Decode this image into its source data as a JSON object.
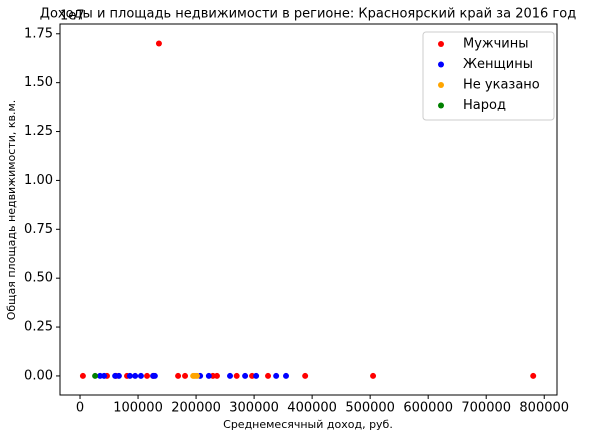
{
  "chart_data": {
    "type": "scatter",
    "title": "Доходы и площадь недвижимости в регионе: Красноярский край за 2016 год",
    "x_label": "Среднемесячный доход, руб.",
    "y_label": "Общая площадь недвижимости, кв.м.",
    "y_offset_label": "1e7",
    "xlim": [
      -34500,
      822000
    ],
    "ylim": [
      -0.0975,
      1.8
    ],
    "xticks": [
      0,
      100000,
      200000,
      300000,
      400000,
      500000,
      600000,
      700000,
      800000
    ],
    "yticks": [
      {
        "value": 0,
        "label": "0.00"
      },
      {
        "value": 0.25,
        "label": "0.25"
      },
      {
        "value": 0.5,
        "label": "0.50"
      },
      {
        "value": 0.75,
        "label": "0.75"
      },
      {
        "value": 1,
        "label": "1.00"
      },
      {
        "value": 1.25,
        "label": "1.25"
      },
      {
        "value": 1.5,
        "label": "1.50"
      },
      {
        "value": 1.75,
        "label": "1.75"
      }
    ],
    "legend": "upper right",
    "series": [
      {
        "name": "Мужчины",
        "color": "#ff0000",
        "x": [
          5000,
          46500,
          62000,
          81000,
          115500,
          126000,
          136000,
          169000,
          181000,
          229000,
          236000,
          270000,
          296500,
          324000,
          388000,
          505000,
          781000
        ],
        "values": [
          0,
          0,
          0,
          0,
          0,
          0,
          1.7,
          0,
          0,
          0,
          0,
          0,
          0,
          0,
          0,
          0,
          0
        ]
      },
      {
        "name": "Женщины",
        "color": "#0000ff",
        "x": [
          34500,
          41500,
          60500,
          67000,
          86000,
          95000,
          105000,
          126000,
          129000,
          207000,
          222000,
          258500,
          284500,
          303500,
          338000,
          355000
        ],
        "values": [
          0,
          0,
          0,
          0,
          0,
          0,
          0,
          0,
          0,
          0,
          0,
          0,
          0,
          0,
          0,
          0
        ]
      },
      {
        "name": "Не указано",
        "color": "#ffa500",
        "x": [
          195000,
          198000,
          201500
        ],
        "values": [
          0,
          0,
          0
        ]
      },
      {
        "name": "Народ",
        "color": "#008000",
        "x": [
          26000
        ],
        "values": [
          0
        ]
      }
    ]
  }
}
